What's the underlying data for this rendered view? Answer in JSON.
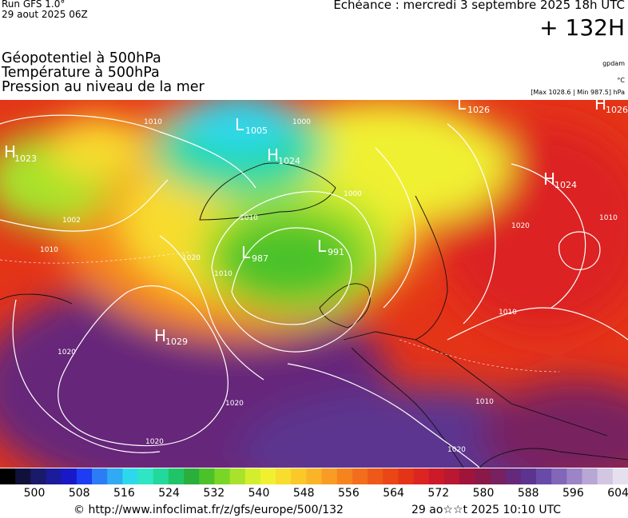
{
  "header": {
    "run_model": "Run GFS 1.0°",
    "run_date": "29 aout 2025 06Z",
    "echeance": "Echéance : mercredi 3 septembre 2025 18h UTC",
    "horizon": "+ 132H"
  },
  "layers": [
    "Géopotentiel à 500hPa",
    "Température à 500hPa",
    "Pression au niveau de la mer"
  ],
  "units": {
    "geopotential": "gpdam",
    "temperature": "°C",
    "pressure_range": "[Max 1028.6 | Min 987.5] hPa"
  },
  "pressure_centers": [
    {
      "letter": "L",
      "value": "1005"
    },
    {
      "letter": "H",
      "value": "1024"
    },
    {
      "letter": "L",
      "value": "1026"
    },
    {
      "letter": "H",
      "value": "1026"
    },
    {
      "letter": "H",
      "value": "1023"
    },
    {
      "letter": "H",
      "value": "1024"
    },
    {
      "letter": "L",
      "value": "987"
    },
    {
      "letter": "L",
      "value": "991"
    },
    {
      "letter": "H",
      "value": "1029"
    }
  ],
  "isobar_labels": [
    "1010",
    "1020",
    "1002",
    "1010",
    "1020",
    "1000",
    "1010",
    "1010",
    "1020",
    "1020",
    "1010",
    "1020",
    "1020",
    "1010",
    "1010",
    "1000"
  ],
  "colorbar": {
    "ticks": [
      "500",
      "508",
      "516",
      "524",
      "532",
      "540",
      "548",
      "556",
      "564",
      "572",
      "580",
      "588",
      "596",
      "604"
    ],
    "colors": [
      "#000000",
      "#10103a",
      "#1a1a6a",
      "#1b1b9b",
      "#1818c8",
      "#1e3cf2",
      "#2c7cf6",
      "#30aaf2",
      "#2ed8ec",
      "#2ee6c4",
      "#22d89a",
      "#20c468",
      "#2aae3c",
      "#4cc22a",
      "#7ad626",
      "#a8e22a",
      "#d2ee2c",
      "#f0f030",
      "#f8dc2e",
      "#fac828",
      "#fab428",
      "#f89c26",
      "#f6841e",
      "#f26e1c",
      "#ee5818",
      "#ea4616",
      "#e43418",
      "#dc2422",
      "#cc1a2a",
      "#b81832",
      "#a0143c",
      "#8a1848",
      "#782060",
      "#66287a",
      "#5c3490",
      "#6a4aa8",
      "#8266b8",
      "#9c84c6",
      "#b8a6d4",
      "#d2c6e2",
      "#e6e0ee"
    ]
  },
  "footer": {
    "copyright": "© http://www.infoclimat.fr/z/gfs/europe/500/132",
    "run_stamp": "29 ao☆☆t 2025 10:10 UTC"
  }
}
